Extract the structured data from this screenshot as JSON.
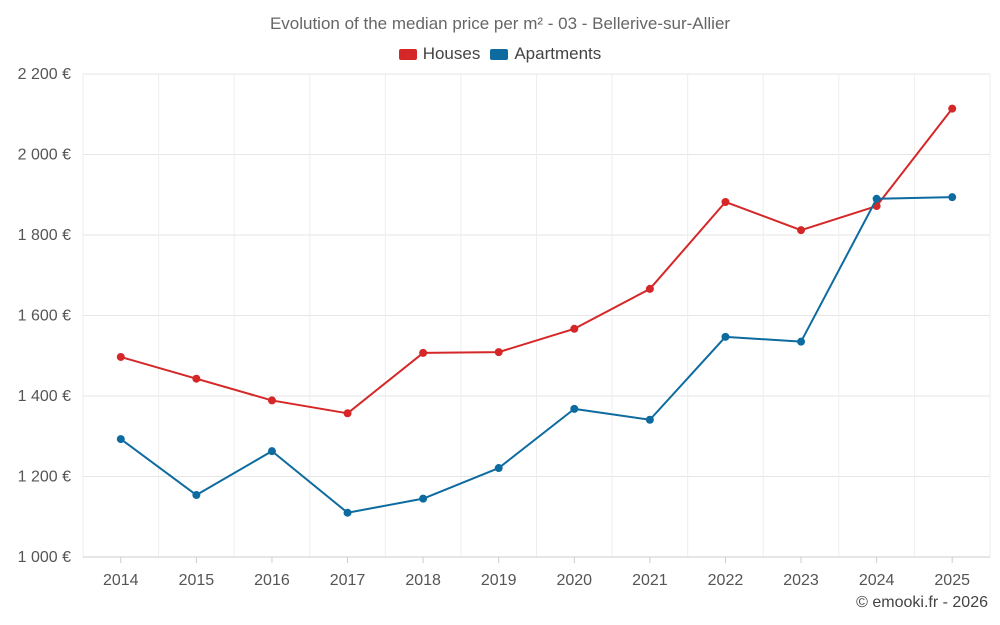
{
  "chart_data": {
    "type": "line",
    "title": "Evolution of the median price per m² - 03 - Bellerive-sur-Allier",
    "x": [
      "2014",
      "2015",
      "2016",
      "2017",
      "2018",
      "2019",
      "2020",
      "2021",
      "2022",
      "2023",
      "2024",
      "2025"
    ],
    "ylim": [
      1000,
      2200
    ],
    "yticks": [
      1000,
      1200,
      1400,
      1600,
      1800,
      2000,
      2200
    ],
    "ytick_labels": [
      "1 000 €",
      "1 200 €",
      "1 400 €",
      "1 600 €",
      "1 800 €",
      "2 000 €",
      "2 200 €"
    ],
    "grid": true,
    "legend_position": "top-center",
    "series": [
      {
        "name": "Houses",
        "color": "#d62728",
        "values": [
          1497,
          1443,
          1389,
          1357,
          1507,
          1509,
          1567,
          1666,
          1882,
          1812,
          1872,
          2114
        ]
      },
      {
        "name": "Apartments",
        "color": "#0d6ba0",
        "values": [
          1293,
          1154,
          1263,
          1110,
          1145,
          1221,
          1368,
          1341,
          1547,
          1535,
          1890,
          1894
        ]
      }
    ]
  },
  "credit": "© emooki.fr - 2026"
}
